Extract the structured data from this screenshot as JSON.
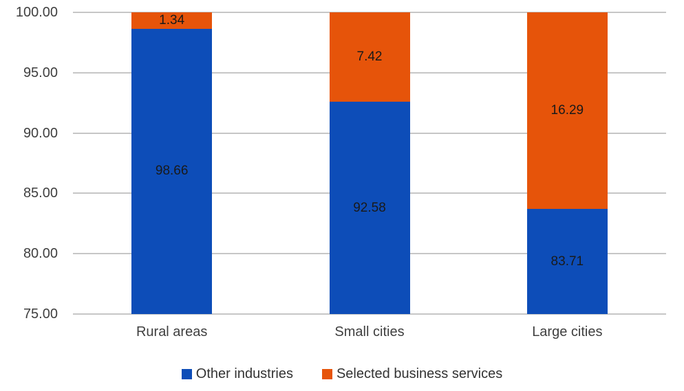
{
  "chart_data": {
    "type": "bar",
    "stacked": true,
    "title": "",
    "xlabel": "",
    "ylabel": "",
    "categories": [
      "Rural areas",
      "Small cities",
      "Large cities"
    ],
    "series": [
      {
        "name": "Other industries",
        "color": "#0D4DB8",
        "values": [
          98.66,
          92.58,
          83.71
        ],
        "data_labels": [
          "98.66",
          "92.58",
          "83.71"
        ]
      },
      {
        "name": "Selected business services",
        "color": "#E6540A",
        "values": [
          1.34,
          7.42,
          16.29
        ],
        "data_labels": [
          "1.34",
          "7.42",
          "16.29"
        ]
      }
    ],
    "ylim": [
      75,
      100
    ],
    "y_ticks": [
      {
        "value": 100,
        "label": "100.00"
      },
      {
        "value": 95,
        "label": "95.00"
      },
      {
        "value": 90,
        "label": "90.00"
      },
      {
        "value": 85,
        "label": "85.00"
      },
      {
        "value": 80,
        "label": "80.00"
      },
      {
        "value": 75,
        "label": "75.00"
      }
    ],
    "grid": true,
    "legend_position": "bottom",
    "data_labels_shown": true
  },
  "colors": {
    "background": "#FFFFFF",
    "gridline": "#C6C6C6",
    "axis_text": "#3F3F3F",
    "data_label_text": "#1A1A1A",
    "legend_text": "#333333"
  }
}
